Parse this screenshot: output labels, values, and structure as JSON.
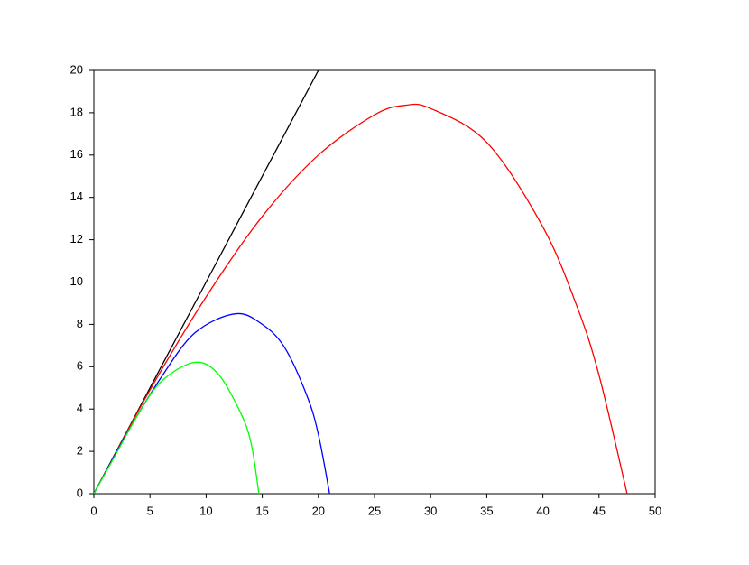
{
  "chart_data": {
    "type": "line",
    "series": [
      {
        "color": "#000000",
        "x": [
          0,
          20
        ],
        "values": [
          0,
          20
        ]
      },
      {
        "color": "#ff0000",
        "x": [
          0,
          5,
          10,
          15,
          20,
          25,
          27.7,
          30,
          35,
          40,
          43,
          45,
          47.5
        ],
        "values": [
          0,
          4.9,
          9.3,
          13.1,
          16.0,
          17.9,
          18.35,
          18.2,
          16.6,
          12.6,
          8.9,
          5.6,
          0
        ]
      },
      {
        "color": "#0000ff",
        "x": [
          0,
          3,
          6,
          9,
          12.6,
          15,
          17,
          19,
          20,
          21
        ],
        "values": [
          0,
          2.9,
          5.5,
          7.6,
          8.5,
          8.0,
          6.9,
          4.6,
          2.8,
          0
        ]
      },
      {
        "color": "#00ff00",
        "x": [
          0,
          2,
          4,
          6,
          8.9,
          11,
          13,
          14,
          14.7
        ],
        "values": [
          0,
          1.9,
          3.8,
          5.3,
          6.2,
          5.7,
          3.9,
          2.4,
          0
        ]
      }
    ],
    "xlim": [
      0,
      50
    ],
    "xticks": [
      0,
      5,
      10,
      15,
      20,
      25,
      30,
      35,
      40,
      45,
      50
    ],
    "ylim": [
      0,
      20
    ],
    "yticks": [
      0,
      2,
      4,
      6,
      8,
      10,
      12,
      14,
      16,
      18,
      20
    ]
  }
}
